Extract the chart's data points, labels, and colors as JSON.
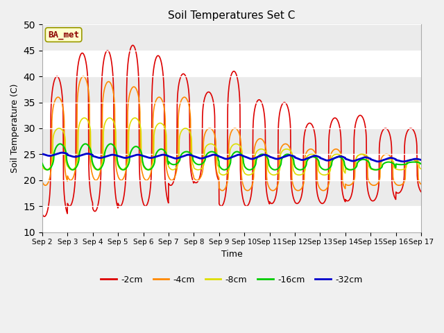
{
  "title": "Soil Temperatures Set C",
  "xlabel": "Time",
  "ylabel": "Soil Temperature (C)",
  "ylim": [
    10,
    50
  ],
  "yticks": [
    10,
    15,
    20,
    25,
    30,
    35,
    40,
    45,
    50
  ],
  "annotation": "BA_met",
  "bg_bands": [
    {
      "ymin": 10,
      "ymax": 15,
      "color": "#ffffff"
    },
    {
      "ymin": 15,
      "ymax": 20,
      "color": "#ebebeb"
    },
    {
      "ymin": 20,
      "ymax": 25,
      "color": "#ffffff"
    },
    {
      "ymin": 25,
      "ymax": 30,
      "color": "#ebebeb"
    },
    {
      "ymin": 30,
      "ymax": 35,
      "color": "#ffffff"
    },
    {
      "ymin": 35,
      "ymax": 40,
      "color": "#ebebeb"
    },
    {
      "ymin": 40,
      "ymax": 45,
      "color": "#ffffff"
    },
    {
      "ymin": 45,
      "ymax": 50,
      "color": "#ebebeb"
    }
  ],
  "series": {
    "-2cm": {
      "color": "#dd0000",
      "lw": 1.2
    },
    "-4cm": {
      "color": "#ff8800",
      "lw": 1.2
    },
    "-8cm": {
      "color": "#dddd00",
      "lw": 1.2
    },
    "-16cm": {
      "color": "#00cc00",
      "lw": 1.5
    },
    "-32cm": {
      "color": "#0000cc",
      "lw": 2.0
    }
  },
  "n_days": 15,
  "pts_per_day": 144,
  "day_peaks_2cm": [
    40,
    44.5,
    45,
    46,
    44,
    40.5,
    37,
    41,
    35.5,
    35,
    31,
    32,
    32.5,
    30,
    30
  ],
  "day_mins_2cm": [
    13,
    15,
    14,
    15,
    15,
    19,
    19.5,
    15,
    15,
    15.5,
    15.5,
    15.5,
    16,
    16,
    17.5
  ],
  "day_peaks_4cm": [
    36,
    40,
    39,
    38,
    36,
    36,
    30,
    30,
    28,
    27,
    26,
    26,
    25,
    25,
    24
  ],
  "day_mins_4cm": [
    19,
    20,
    20,
    20,
    20,
    20,
    20,
    18,
    18,
    18,
    18,
    18,
    19,
    19,
    19
  ],
  "day_peaks_8cm": [
    30,
    32,
    32,
    32,
    31,
    30,
    27,
    27,
    26,
    26,
    25,
    25,
    25,
    24,
    24
  ],
  "day_mins_8cm": [
    22,
    22,
    22,
    22,
    22,
    22,
    22,
    21,
    21,
    21,
    21,
    21,
    22,
    22,
    22
  ],
  "day_peaks_16cm": [
    27,
    27,
    27,
    26.5,
    26,
    25.5,
    25.5,
    25.5,
    25,
    25,
    24.5,
    24.5,
    24,
    23.5,
    23.5
  ],
  "day_mins_16cm": [
    22,
    22,
    22,
    22,
    22,
    23,
    23,
    22,
    22,
    22,
    22,
    22,
    22,
    22,
    23
  ],
  "day_peaks_32cm": [
    25.3,
    25.1,
    24.9,
    24.9,
    24.9,
    24.9,
    24.9,
    24.9,
    24.9,
    24.8,
    24.7,
    24.6,
    24.4,
    24.3,
    24.1
  ],
  "day_mins_32cm": [
    24.7,
    24.5,
    24.3,
    24.3,
    24.3,
    24.2,
    24.2,
    24.1,
    24.1,
    24.1,
    23.9,
    23.8,
    23.7,
    23.6,
    23.6
  ],
  "xtick_labels": [
    "Sep 2",
    "Sep 3",
    "Sep 4",
    "Sep 5",
    "Sep 6",
    "Sep 7",
    "Sep 8",
    "Sep 9",
    "Sep 10",
    "Sep 11",
    "Sep 12",
    "Sep 13",
    "Sep 14",
    "Sep 15",
    "Sep 16",
    "Sep 17"
  ],
  "peak_sharpness": 4.0,
  "peak_hour_2cm": 14,
  "peak_hour_4cm": 15,
  "peak_hour_8cm": 16,
  "peak_hour_16cm": 17,
  "peak_hour_32cm": 19
}
